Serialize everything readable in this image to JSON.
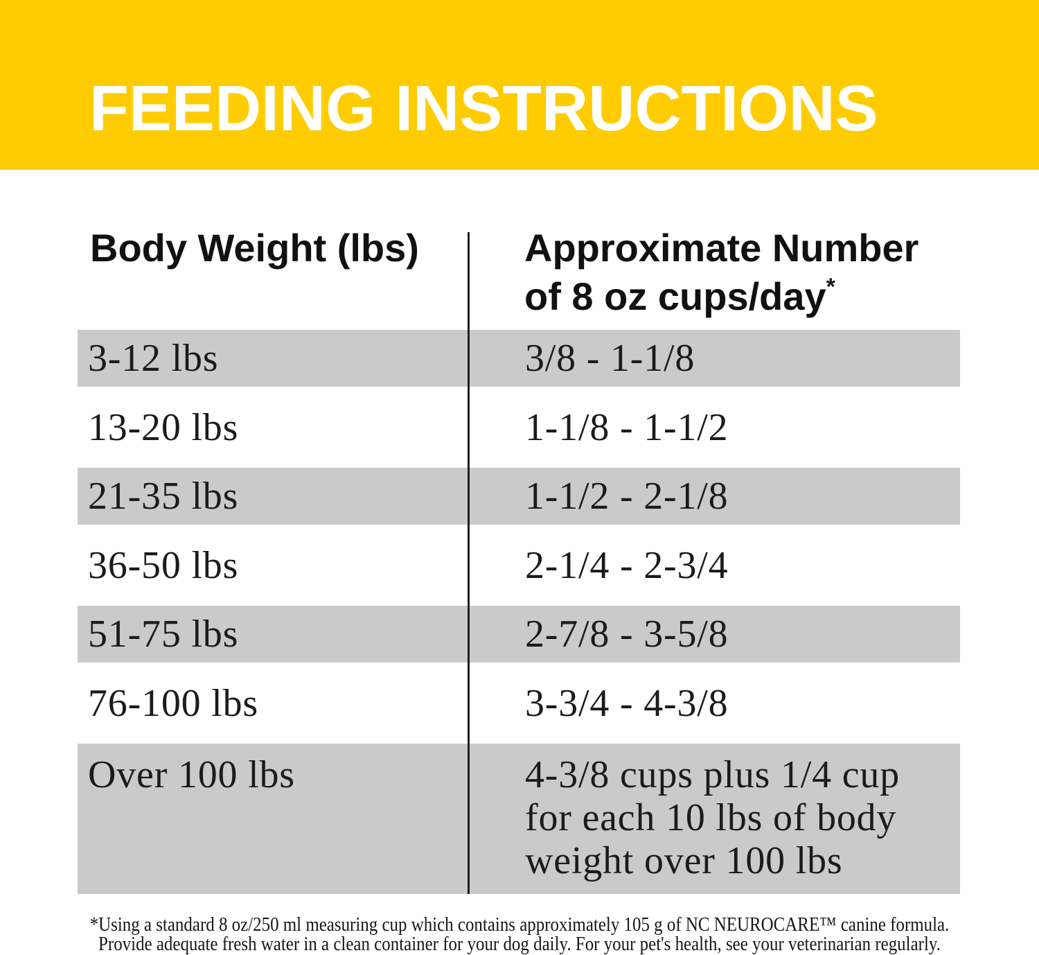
{
  "header": {
    "title": "FEEDING INSTRUCTIONS",
    "band_color": "#FECC00",
    "title_color": "#FFFFFF"
  },
  "table": {
    "col1_header": "Body Weight (lbs)",
    "col2_header_line1": "Approximate Number",
    "col2_header_line2": "of 8 oz cups/day",
    "col2_footnote_marker": "*",
    "rows": [
      {
        "weight": "3-12 lbs",
        "cups": "3/8 - 1-1/8"
      },
      {
        "weight": "13-20 lbs",
        "cups": "1-1/8 - 1-1/2"
      },
      {
        "weight": "21-35 lbs",
        "cups": "1-1/2 - 2-1/8"
      },
      {
        "weight": "36-50 lbs",
        "cups": "2-1/4 - 2-3/4"
      },
      {
        "weight": "51-75 lbs",
        "cups": "2-7/8 - 3-5/8"
      },
      {
        "weight": "76-100 lbs",
        "cups": "3-3/4 - 4-3/8"
      },
      {
        "weight": "Over 100 lbs",
        "cups": "4-3/8 cups plus 1/4 cup\nfor each 10 lbs of body\nweight over 100 lbs"
      }
    ],
    "shaded_row_color": "#CACACA",
    "divider_color": "#1F1F1F"
  },
  "footnote": {
    "line1": "*Using a standard 8 oz/250 ml measuring cup which contains approximately 105 g of NC NEUROCARE™ canine formula.",
    "line2": "Provide adequate fresh water in a clean container for your dog daily. For your pet's health, see your veterinarian regularly."
  }
}
